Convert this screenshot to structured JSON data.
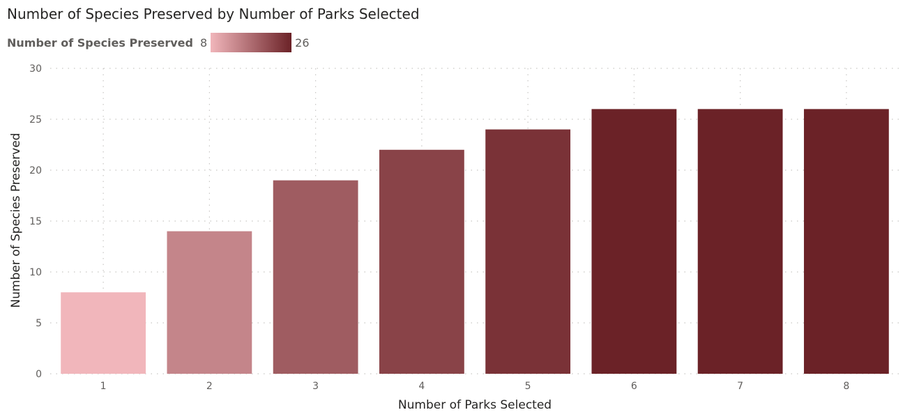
{
  "title": "Number of Species Preserved by Number of Parks Selected",
  "legend": {
    "title": "Number of Species Preserved",
    "min_label": "8",
    "max_label": "26",
    "min_color": "#f1b6bb",
    "max_color": "#6b2227"
  },
  "chart_data": {
    "type": "bar",
    "title": "Number of Species Preserved by Number of Parks Selected",
    "xlabel": "Number of Parks Selected",
    "ylabel": "Number of Species Preserved",
    "categories": [
      "1",
      "2",
      "3",
      "4",
      "5",
      "6",
      "7",
      "8"
    ],
    "values": [
      8,
      14,
      19,
      22,
      24,
      26,
      26,
      26
    ],
    "ylim": [
      0,
      30
    ],
    "yticks": [
      0,
      5,
      10,
      15,
      20,
      25,
      30
    ],
    "grid": true,
    "legend_position": "top-left",
    "color_scale": {
      "min": 8,
      "max": 26,
      "min_color": "#f1b6bb",
      "max_color": "#6b2227"
    }
  }
}
